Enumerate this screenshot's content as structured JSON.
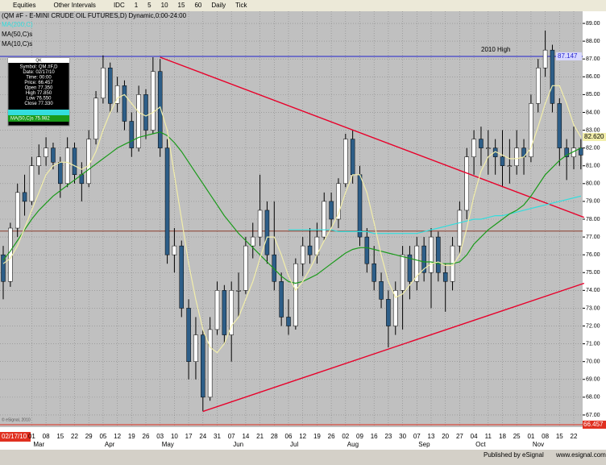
{
  "toolbar": {
    "items": [
      "Equities",
      "Other Intervals",
      "IDC",
      "1",
      "5",
      "10",
      "15",
      "60",
      "Daily",
      "Tick"
    ]
  },
  "chart_data": {
    "type": "candlestick",
    "title": "(QM #F - E-MINI CRUDE OIL FUTURES,D) Dynamic,0:00-24:00",
    "ohlc": [
      [
        76.0,
        76.5,
        73.5,
        74.5
      ],
      [
        74.5,
        77.8,
        74.2,
        77.5
      ],
      [
        77.5,
        80.0,
        77.0,
        79.5
      ],
      [
        79.5,
        80.5,
        78.2,
        79.0
      ],
      [
        79.0,
        81.5,
        78.8,
        81.0
      ],
      [
        81.0,
        82.2,
        80.5,
        81.5
      ],
      [
        81.5,
        82.6,
        81.0,
        82.0
      ],
      [
        82.0,
        82.3,
        80.8,
        81.2
      ],
      [
        81.2,
        81.5,
        79.2,
        80.0
      ],
      [
        80.0,
        82.6,
        79.8,
        82.0
      ],
      [
        82.0,
        82.3,
        80.0,
        80.5
      ],
      [
        80.5,
        81.2,
        79.0,
        80.0
      ],
      [
        80.0,
        83.0,
        79.8,
        82.5
      ],
      [
        82.5,
        85.2,
        82.2,
        84.8
      ],
      [
        84.8,
        87.2,
        84.5,
        86.5
      ],
      [
        86.5,
        86.8,
        84.0,
        84.5
      ],
      [
        84.5,
        86.0,
        84.0,
        85.5
      ],
      [
        85.5,
        85.8,
        83.0,
        83.5
      ],
      [
        83.5,
        84.0,
        81.5,
        82.0
      ],
      [
        82.0,
        85.5,
        81.8,
        85.0
      ],
      [
        85.0,
        85.3,
        82.5,
        83.0
      ],
      [
        83.0,
        87.1,
        82.8,
        86.3
      ],
      [
        86.3,
        87.0,
        81.5,
        82.0
      ],
      [
        82.0,
        82.5,
        75.5,
        76.0
      ],
      [
        76.0,
        77.5,
        75.0,
        76.5
      ],
      [
        76.5,
        76.8,
        72.5,
        73.0
      ],
      [
        73.0,
        73.5,
        69.0,
        70.0
      ],
      [
        70.0,
        72.5,
        69.0,
        71.5
      ],
      [
        71.5,
        71.8,
        67.2,
        68.0
      ],
      [
        68.0,
        72.5,
        67.8,
        71.8
      ],
      [
        71.8,
        74.5,
        71.5,
        74.0
      ],
      [
        74.0,
        74.3,
        71.0,
        71.5
      ],
      [
        71.5,
        74.5,
        70.0,
        74.0
      ],
      [
        74.0,
        75.0,
        72.5,
        74.0
      ],
      [
        74.0,
        77.0,
        73.8,
        76.5
      ],
      [
        76.5,
        77.8,
        75.8,
        77.0
      ],
      [
        77.0,
        80.5,
        76.5,
        78.5
      ],
      [
        78.5,
        79.0,
        75.5,
        76.0
      ],
      [
        76.0,
        79.0,
        74.0,
        74.5
      ],
      [
        74.5,
        75.0,
        72.0,
        72.5
      ],
      [
        72.5,
        73.5,
        71.5,
        72.0
      ],
      [
        72.0,
        75.8,
        71.8,
        75.5
      ],
      [
        75.5,
        77.0,
        74.8,
        76.5
      ],
      [
        76.5,
        77.5,
        75.5,
        76.0
      ],
      [
        76.0,
        77.8,
        75.5,
        77.0
      ],
      [
        77.0,
        79.5,
        76.8,
        79.0
      ],
      [
        79.0,
        79.5,
        77.5,
        78.0
      ],
      [
        78.0,
        80.3,
        77.5,
        80.0
      ],
      [
        80.0,
        82.8,
        79.8,
        82.5
      ],
      [
        82.5,
        83.0,
        80.0,
        80.5
      ],
      [
        80.5,
        81.0,
        76.5,
        77.0
      ],
      [
        77.0,
        77.5,
        75.0,
        75.5
      ],
      [
        75.5,
        76.5,
        74.0,
        74.5
      ],
      [
        74.5,
        75.0,
        73.0,
        73.5
      ],
      [
        73.5,
        74.0,
        70.8,
        72.0
      ],
      [
        72.0,
        74.5,
        71.5,
        74.0
      ],
      [
        74.0,
        76.5,
        71.8,
        76.0
      ],
      [
        76.0,
        76.5,
        73.5,
        74.5
      ],
      [
        74.5,
        77.0,
        74.0,
        76.5
      ],
      [
        76.5,
        77.0,
        74.5,
        75.0
      ],
      [
        75.0,
        77.5,
        73.0,
        77.0
      ],
      [
        77.0,
        77.3,
        74.5,
        75.0
      ],
      [
        75.0,
        75.5,
        72.8,
        74.5
      ],
      [
        74.5,
        77.0,
        74.0,
        76.5
      ],
      [
        76.5,
        79.0,
        76.0,
        78.5
      ],
      [
        78.5,
        82.0,
        78.0,
        81.5
      ],
      [
        81.5,
        83.0,
        80.5,
        82.5
      ],
      [
        82.5,
        83.2,
        81.0,
        82.0
      ],
      [
        82.0,
        83.0,
        80.5,
        82.0
      ],
      [
        82.0,
        82.5,
        80.5,
        81.5
      ],
      [
        81.5,
        83.0,
        79.8,
        81.0
      ],
      [
        81.0,
        82.5,
        80.0,
        81.0
      ],
      [
        81.0,
        83.0,
        80.5,
        82.0
      ],
      [
        82.0,
        82.5,
        80.5,
        81.5
      ],
      [
        81.5,
        85.0,
        81.2,
        84.5
      ],
      [
        84.5,
        87.0,
        84.0,
        86.5
      ],
      [
        86.5,
        88.6,
        86.0,
        87.5
      ],
      [
        87.5,
        87.8,
        84.0,
        84.5
      ],
      [
        84.5,
        84.8,
        81.0,
        82.0
      ],
      [
        82.0,
        82.5,
        80.2,
        81.5
      ],
      [
        81.5,
        83.2,
        80.8,
        82.0
      ],
      [
        82.0,
        82.5,
        80.8,
        81.6
      ]
    ],
    "up_color": "#ffffff",
    "down_color": "#2d5e88",
    "series": [
      {
        "name": "MA(200,C)",
        "color": "#33dddd",
        "values": [
          null,
          null,
          null,
          null,
          null,
          null,
          null,
          null,
          null,
          null,
          null,
          null,
          null,
          null,
          null,
          null,
          null,
          null,
          null,
          null,
          null,
          null,
          null,
          null,
          null,
          null,
          null,
          null,
          null,
          null,
          null,
          null,
          null,
          null,
          null,
          null,
          null,
          null,
          null,
          null,
          77.4,
          77.4,
          77.4,
          77.4,
          77.4,
          77.4,
          77.4,
          77.3,
          77.3,
          77.3,
          77.3,
          77.3,
          77.2,
          77.2,
          77.2,
          77.2,
          77.2,
          77.2,
          77.2,
          77.3,
          77.4,
          77.5,
          77.6,
          77.7,
          77.8,
          77.9,
          78.0,
          78.0,
          78.1,
          78.2,
          78.2,
          78.3,
          78.4,
          78.5,
          78.6,
          78.7,
          78.8,
          78.9,
          79.0,
          79.1,
          79.2,
          79.3
        ]
      },
      {
        "name": "MA(50,C)s",
        "color": "#1a9a1a",
        "values": [
          75.7,
          76.2,
          76.8,
          77.4,
          78.0,
          78.5,
          78.9,
          79.3,
          79.6,
          79.9,
          80.2,
          80.5,
          80.8,
          81.1,
          81.4,
          81.7,
          82.0,
          82.2,
          82.4,
          82.6,
          82.7,
          82.8,
          82.9,
          82.7,
          82.3,
          81.8,
          81.2,
          80.6,
          80.0,
          79.4,
          78.8,
          78.2,
          77.7,
          77.2,
          76.8,
          76.4,
          76.0,
          75.6,
          75.2,
          74.8,
          74.5,
          74.4,
          74.5,
          74.7,
          74.9,
          75.2,
          75.5,
          75.8,
          76.1,
          76.3,
          76.4,
          76.4,
          76.3,
          76.2,
          76.1,
          76.0,
          75.9,
          75.8,
          75.7,
          75.6,
          75.6,
          75.5,
          75.5,
          75.5,
          75.6,
          76.0,
          76.6,
          77.0,
          77.4,
          77.7,
          78.0,
          78.3,
          78.5,
          78.8,
          79.3,
          79.9,
          80.5,
          80.9,
          81.3,
          81.6,
          81.8,
          82.0
        ]
      },
      {
        "name": "MA(10,C)s",
        "color": "#f2eeaa",
        "values": [
          75.5,
          75.8,
          76.5,
          77.5,
          78.5,
          79.5,
          80.5,
          81,
          81.2,
          81.2,
          81,
          80.8,
          81,
          81.8,
          83,
          84,
          84.8,
          85,
          84.5,
          84,
          83.8,
          84,
          84.3,
          83,
          80.5,
          78,
          75.5,
          73.5,
          71.8,
          70.8,
          70.5,
          71,
          72,
          72.5,
          73.5,
          74.5,
          75.8,
          77,
          77,
          76,
          74.8,
          74,
          74.5,
          75.2,
          76,
          76.8,
          77.5,
          78.3,
          79.5,
          80.5,
          80.5,
          79.5,
          77.8,
          76,
          74.5,
          73.6,
          73.8,
          74.3,
          74.8,
          75.2,
          75.5,
          75.6,
          75.4,
          75.4,
          76,
          77.5,
          79.3,
          80.7,
          81.5,
          81.8,
          81.6,
          81.4,
          81.4,
          81.5,
          82,
          83.2,
          84.5,
          85.5,
          85.5,
          84.5,
          83.3,
          82.6
        ]
      }
    ],
    "trendlines": [
      {
        "color": "#e8002a",
        "from": [
          22,
          87.1
        ],
        "to": [
          81,
          78.1
        ]
      },
      {
        "color": "#e8002a",
        "from": [
          28,
          67.2
        ],
        "to": [
          81,
          74.4
        ]
      }
    ],
    "hlines": [
      {
        "color": "#2222cc",
        "value": 87.147,
        "label": "87.147",
        "note": "2010 High"
      },
      {
        "color": "#8a3a2a",
        "value": 77.33
      },
      {
        "color": "#e03020",
        "value": 66.457,
        "label": "66.457"
      }
    ],
    "price_flags": [
      {
        "value": 82.62,
        "label": "82.620",
        "color": "#f2eeaa"
      }
    ],
    "ylim": [
      66.5,
      89.68
    ],
    "yticks": [
      {
        "value": 67,
        "label": "67.00"
      },
      {
        "value": 68,
        "label": "68.00"
      },
      {
        "value": 69,
        "label": "69.00"
      },
      {
        "value": 70,
        "label": "70.00"
      },
      {
        "value": 71,
        "label": "71.00"
      },
      {
        "value": 72,
        "label": "72.00"
      },
      {
        "value": 73,
        "label": "73.00"
      },
      {
        "value": 74,
        "label": "74.00"
      },
      {
        "value": 75,
        "label": "75.00"
      },
      {
        "value": 76,
        "label": "76.00"
      },
      {
        "value": 77,
        "label": "77.00"
      },
      {
        "value": 78,
        "label": "78.00"
      },
      {
        "value": 79,
        "label": "79.00"
      },
      {
        "value": 80,
        "label": "80.00"
      },
      {
        "value": 81,
        "label": "81.00"
      },
      {
        "value": 82,
        "label": "82.00"
      },
      {
        "value": 83,
        "label": "83.00"
      },
      {
        "value": 84,
        "label": "84.00"
      },
      {
        "value": 85,
        "label": "85.00"
      },
      {
        "value": 86,
        "label": "86.00"
      },
      {
        "value": 87,
        "label": "87.00"
      },
      {
        "value": 88,
        "label": "88.00"
      },
      {
        "value": 89,
        "label": "89.00"
      }
    ],
    "x_labels": [
      "01",
      "08",
      "15",
      "22",
      "29",
      "05",
      "12",
      "19",
      "26",
      "03",
      "10",
      "17",
      "24",
      "31",
      "07",
      "14",
      "21",
      "28",
      "06",
      "12",
      "19",
      "26",
      "02",
      "09",
      "16",
      "23",
      "30",
      "07",
      "13",
      "20",
      "27",
      "04",
      "11",
      "18",
      "25",
      "01",
      "08",
      "15",
      "22"
    ],
    "month_labels": [
      "Mar",
      null,
      null,
      null,
      null,
      "Apr",
      null,
      null,
      null,
      "May",
      null,
      null,
      null,
      null,
      "Jun",
      null,
      null,
      null,
      "Jul",
      null,
      null,
      null,
      "Aug",
      null,
      null,
      null,
      null,
      "Sep",
      null,
      null,
      null,
      "Oct",
      null,
      null,
      null,
      "Nov",
      null,
      null,
      null
    ],
    "cursor_date": "02/17/10",
    "grid": true,
    "copyright": "© eSignal, 2010"
  },
  "data_window": {
    "header": "QK",
    "rows": [
      "Symbol: QM #F,D",
      "Date: 02/17/10",
      "Time: 00:00",
      "Price: 66.457",
      "Open 77.350",
      "High 77.850",
      "Low 76.550",
      "Close 77.330"
    ],
    "ma_row": "MA(50,C)s 75.982"
  },
  "footer": {
    "published": "Published by eSignal",
    "url": "www.esignal.com"
  }
}
